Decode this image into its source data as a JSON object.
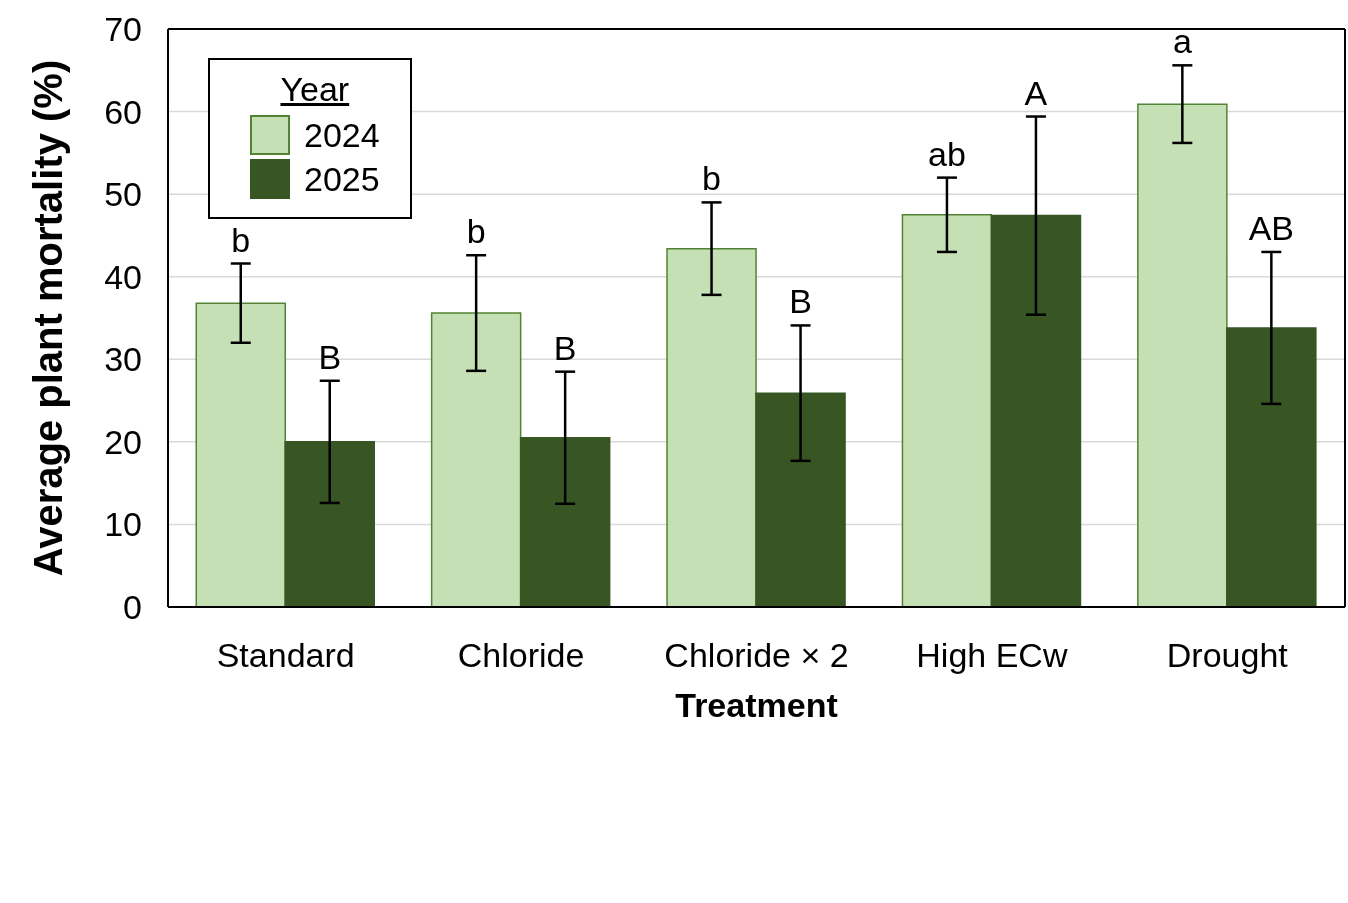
{
  "chart_data": {
    "type": "bar",
    "xlabel": "Treatment",
    "ylabel": "Average plant mortality (%)",
    "legend_title": "Year",
    "categories": [
      "Standard",
      "Chloride",
      "Chloride × 2",
      "High ECw",
      "Drought"
    ],
    "series": [
      {
        "name": "2024",
        "color": "#c5e0b4",
        "values": [
          36.8,
          35.6,
          43.4,
          47.5,
          60.9
        ],
        "errors": [
          4.8,
          7.0,
          5.6,
          4.5,
          4.7
        ],
        "value_labels": [
          "b",
          "b",
          "b",
          "ab",
          "a"
        ]
      },
      {
        "name": "2025",
        "color": "#375623",
        "values": [
          20.0,
          20.5,
          25.9,
          47.4,
          33.8
        ],
        "errors": [
          7.4,
          8.0,
          8.2,
          12.0,
          9.2
        ],
        "value_labels": [
          "B",
          "B",
          "B",
          "A",
          "AB"
        ]
      }
    ],
    "ylim": [
      0,
      70
    ],
    "yticks": [
      0,
      10,
      20,
      30,
      40,
      50,
      60,
      70
    ],
    "grid": "y",
    "legend": "top left"
  }
}
